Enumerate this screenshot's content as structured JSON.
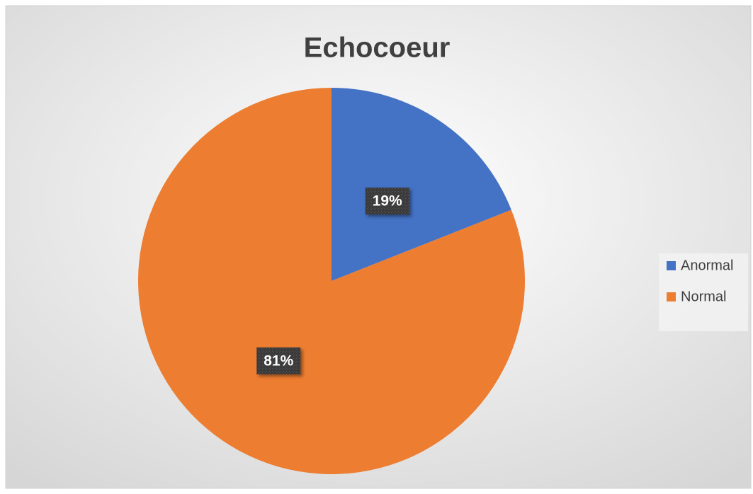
{
  "chart_data": {
    "type": "pie",
    "title": "Echocoeur",
    "categories": [
      "Anormal",
      "Normal"
    ],
    "values": [
      19,
      81
    ],
    "value_labels": [
      "19%",
      "81%"
    ],
    "colors": [
      "#4472c4",
      "#ed7d31"
    ],
    "legend": "right"
  }
}
